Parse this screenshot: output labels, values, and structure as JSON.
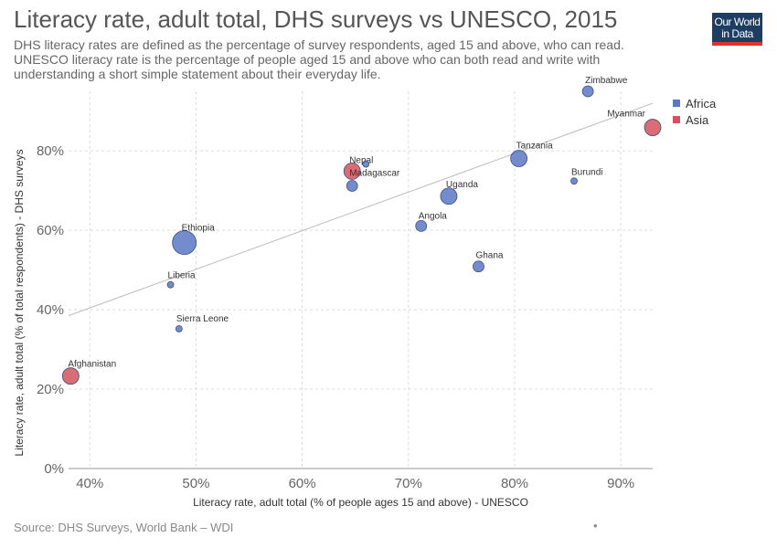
{
  "title": "Literacy rate, adult total, DHS surveys vs UNESCO, 2015",
  "subtitle": "DHS literacy rates are defined as the percentage of survey respondents, aged 15 and above, who can read. UNESCO literacy rate is the percentage of people aged 15 and above who can both read and write with understanding a short simple statement about their everyday life.",
  "logo": {
    "line1": "Our World",
    "line2": "in Data"
  },
  "source": "Source: DHS Surveys, World Bank – WDI",
  "colors": {
    "Africa": "#5b78c4",
    "Asia": "#d4525e",
    "grid": "#dddddd",
    "trend": "#bbbbbb"
  },
  "legend": [
    {
      "label": "Africa",
      "color": "#5b78c4"
    },
    {
      "label": "Asia",
      "color": "#d4525e"
    }
  ],
  "chart_data": {
    "type": "scatter",
    "xlabel": "Literacy rate, adult total (% of people ages 15 and above) - UNESCO",
    "ylabel": "Literacy rate, adult total (% of total respondents) - DHS surveys",
    "xlim": [
      38,
      93
    ],
    "ylim": [
      0,
      95
    ],
    "xticks": [
      40,
      50,
      60,
      70,
      80,
      90
    ],
    "yticks": [
      0,
      20,
      40,
      60,
      80
    ],
    "tick_format": "%",
    "grid": true,
    "legend_position": "top-right",
    "trendline": {
      "x": [
        38,
        93
      ],
      "y": [
        38.5,
        92
      ]
    },
    "points": [
      {
        "label": "Afghanistan",
        "x": 38.2,
        "y": 23.3,
        "region": "Asia",
        "size": "medium"
      },
      {
        "label": "Sierra Leone",
        "x": 48.4,
        "y": 35.2,
        "region": "Africa",
        "size": "tiny"
      },
      {
        "label": "Liberia",
        "x": 47.6,
        "y": 46.3,
        "region": "Africa",
        "size": "tiny"
      },
      {
        "label": "Ethiopia",
        "x": 48.9,
        "y": 56.9,
        "region": "Africa",
        "size": "large"
      },
      {
        "label": "Nepal",
        "x": 64.7,
        "y": 74.9,
        "region": "Asia",
        "size": "medium"
      },
      {
        "label": "",
        "x": 66.0,
        "y": 76.7,
        "region": "Africa",
        "size": "tiny"
      },
      {
        "label": "Madagascar",
        "x": 64.7,
        "y": 71.2,
        "region": "Africa",
        "size": "small"
      },
      {
        "label": "Angola",
        "x": 71.2,
        "y": 61.1,
        "region": "Africa",
        "size": "small"
      },
      {
        "label": "Uganda",
        "x": 73.8,
        "y": 68.6,
        "region": "Africa",
        "size": "medium"
      },
      {
        "label": "Ghana",
        "x": 76.6,
        "y": 50.9,
        "region": "Africa",
        "size": "small"
      },
      {
        "label": "Tanzania",
        "x": 80.4,
        "y": 78.1,
        "region": "Africa",
        "size": "medium"
      },
      {
        "label": "Burundi",
        "x": 85.6,
        "y": 72.4,
        "region": "Africa",
        "size": "tiny"
      },
      {
        "label": "Zimbabwe",
        "x": 86.9,
        "y": 95.0,
        "region": "Africa",
        "size": "small"
      },
      {
        "label": "Myanmar",
        "x": 93.0,
        "y": 85.9,
        "region": "Asia",
        "size": "medium"
      }
    ]
  }
}
